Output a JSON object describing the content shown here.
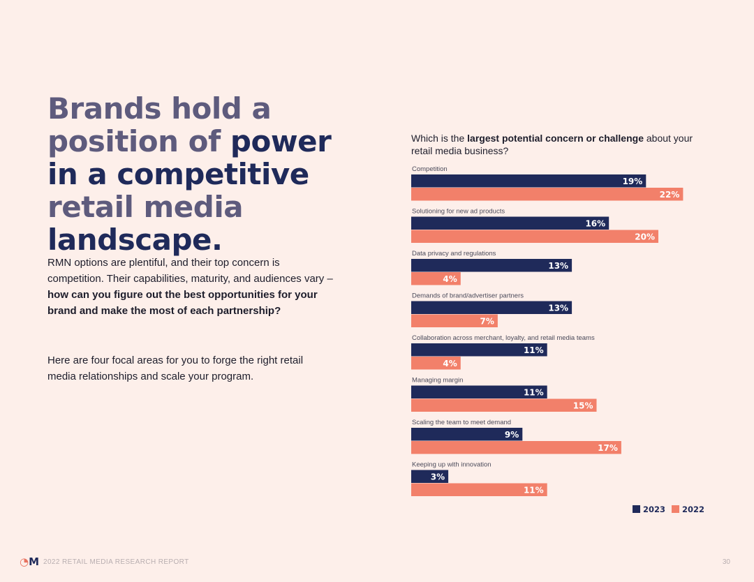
{
  "headline": {
    "part1": "Brands hold a position of ",
    "part2": "power in a competitive",
    "part3": " retail media ",
    "part4": "landscape."
  },
  "body": {
    "p1_plain": "RMN options are plentiful, and their top concern is competition. Their capabilities, maturity, and audiences vary – ",
    "p1_bold": "how can you figure out the best opportunities for your brand and make the most of each partnership?",
    "p2": "Here are four focal areas for you to forge the right retail media relationships and scale your program."
  },
  "chart_title": {
    "pre": "Which is the ",
    "bold": "largest potential concern or challenge",
    "post": " about your retail media business?"
  },
  "colors": {
    "series_2023": "#1f2a5a",
    "series_2022": "#f2806a"
  },
  "chart_data": {
    "type": "bar",
    "orientation": "horizontal",
    "title": "Which is the largest potential concern or challenge about your retail media business?",
    "categories": [
      "Competition",
      "Solutioning for new ad products",
      "Data privacy and regulations",
      "Demands of brand/advertiser partners",
      "Collaboration across merchant, loyalty, and retail media teams",
      "Managing margin",
      "Scaling the team to meet demand",
      "Keeping up with innovation"
    ],
    "series": [
      {
        "name": "2023",
        "values": [
          19,
          16,
          13,
          13,
          11,
          11,
          9,
          3
        ]
      },
      {
        "name": "2022",
        "values": [
          22,
          20,
          4,
          7,
          4,
          15,
          17,
          11
        ]
      }
    ],
    "unit": "%",
    "xlim": [
      0,
      22
    ],
    "legend": "bottom-right",
    "grid": false
  },
  "footer": {
    "logo": "M",
    "report": "2022 RETAIL MEDIA RESEARCH REPORT",
    "page": "30"
  }
}
